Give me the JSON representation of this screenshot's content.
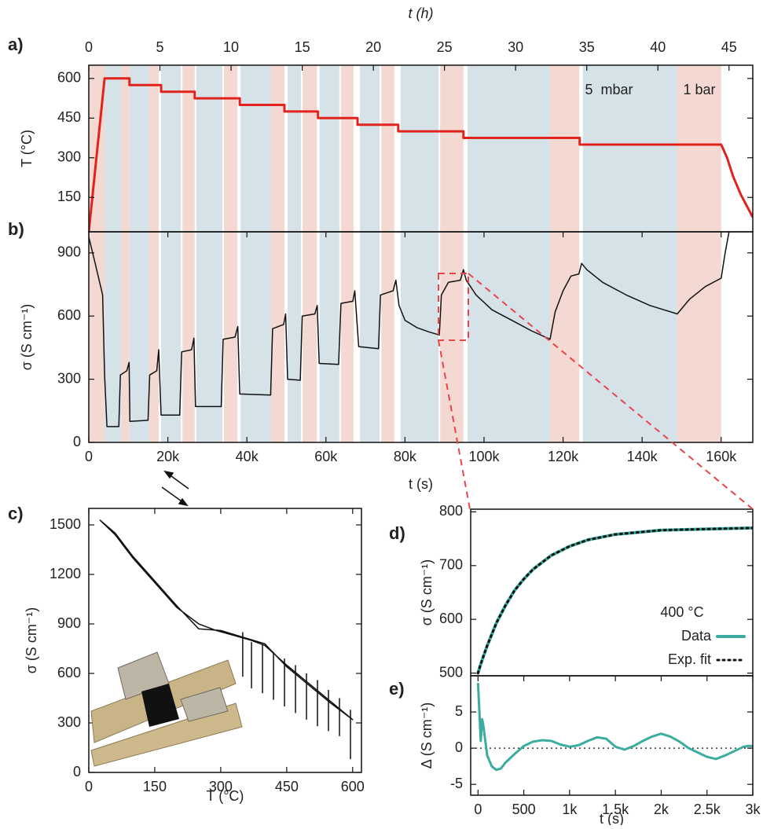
{
  "chart_data": [
    {
      "type": "line",
      "panel": "a)",
      "ylabel": "T (°C)",
      "x2label": "t (h)",
      "color": "#e0231c",
      "xlim": [
        0,
        168000
      ],
      "x2lim": [
        0,
        46.67
      ],
      "x2ticks": [
        0,
        5,
        10,
        15,
        20,
        25,
        30,
        35,
        40,
        45
      ],
      "ylim": [
        20,
        650
      ],
      "yticks": [
        150,
        300,
        450,
        600
      ],
      "annotations": [
        "5  mbar",
        "1 bar"
      ],
      "spans": [
        [
          0,
          4000
        ],
        [
          4000,
          8300
        ],
        [
          8300,
          10300
        ],
        [
          10300,
          15300
        ],
        [
          15300,
          17700
        ],
        [
          18300,
          23300
        ],
        [
          23700,
          26800
        ],
        [
          27200,
          33800
        ],
        [
          34200,
          37600
        ],
        [
          38400,
          46100
        ],
        [
          46100,
          49500
        ],
        [
          50300,
          53700
        ],
        [
          54100,
          57700
        ],
        [
          58400,
          63400
        ],
        [
          63800,
          67000
        ],
        [
          68600,
          73600
        ],
        [
          74000,
          77300
        ],
        [
          78900,
          88500
        ],
        [
          88900,
          94800
        ],
        [
          95800,
          116700
        ],
        [
          116700,
          124100
        ],
        [
          125000,
          148900
        ],
        [
          148900,
          160000
        ]
      ],
      "span_colors": [
        "#f3d9d2",
        "#d5e3e8",
        "#f3d9d2",
        "#d5e3e8",
        "#f3d9d2",
        "#d5e3e8",
        "#f3d9d2",
        "#d5e3e8",
        "#f3d9d2",
        "#d5e3e8",
        "#f3d9d2",
        "#d5e3e8",
        "#f3d9d2",
        "#d5e3e8",
        "#f3d9d2",
        "#d5e3e8",
        "#f3d9d2",
        "#d5e3e8",
        "#f3d9d2",
        "#d5e3e8",
        "#f3d9d2",
        "#d5e3e8",
        "#f3d9d2"
      ],
      "x": [
        0,
        4000,
        10300,
        10300,
        18300,
        18300,
        26800,
        26800,
        38200,
        38200,
        49500,
        49500,
        58000,
        58000,
        68000,
        68000,
        78300,
        78300,
        94800,
        94800,
        124200,
        124200,
        160000,
        161500,
        163000,
        165000,
        168000
      ],
      "values": [
        20,
        600,
        600,
        575,
        575,
        550,
        550,
        525,
        525,
        500,
        500,
        475,
        475,
        450,
        450,
        425,
        425,
        400,
        400,
        375,
        375,
        350,
        350,
        300,
        230,
        160,
        75
      ]
    },
    {
      "type": "line",
      "panel": "b)",
      "ylabel": "σ (S cm⁻¹)",
      "xlabel": "t (s)",
      "color": "#111111",
      "xlim": [
        0,
        168000
      ],
      "xticks": [
        0,
        {
          "value": 20000,
          "label": "20k"
        },
        {
          "value": 40000,
          "label": "40k"
        },
        {
          "value": 60000,
          "label": "60k"
        },
        {
          "value": 80000,
          "label": "80k"
        },
        {
          "value": 100000,
          "label": "100k"
        },
        {
          "value": 120000,
          "label": "120k"
        },
        {
          "value": 140000,
          "label": "140k"
        },
        {
          "value": 160000,
          "label": "160k"
        }
      ],
      "ylim": [
        0,
        1000
      ],
      "yticks": [
        0,
        300,
        600,
        900
      ],
      "spans": [
        [
          0,
          4000
        ],
        [
          4000,
          8300
        ],
        [
          8300,
          10300
        ],
        [
          10300,
          15300
        ],
        [
          15300,
          17700
        ],
        [
          18300,
          23300
        ],
        [
          23700,
          26800
        ],
        [
          27200,
          33800
        ],
        [
          34200,
          37600
        ],
        [
          38400,
          46100
        ],
        [
          46100,
          49500
        ],
        [
          50300,
          53700
        ],
        [
          54100,
          57700
        ],
        [
          58400,
          63400
        ],
        [
          63800,
          67000
        ],
        [
          68600,
          73600
        ],
        [
          74000,
          77300
        ],
        [
          78900,
          88500
        ],
        [
          88900,
          94800
        ],
        [
          95800,
          116700
        ],
        [
          116700,
          124100
        ],
        [
          125000,
          148900
        ],
        [
          148900,
          160000
        ]
      ],
      "span_colors": [
        "#f3d9d2",
        "#d5e3e8",
        "#f3d9d2",
        "#d5e3e8",
        "#f3d9d2",
        "#d5e3e8",
        "#f3d9d2",
        "#d5e3e8",
        "#f3d9d2",
        "#d5e3e8",
        "#f3d9d2",
        "#d5e3e8",
        "#f3d9d2",
        "#d5e3e8",
        "#f3d9d2",
        "#d5e3e8",
        "#f3d9d2",
        "#d5e3e8",
        "#f3d9d2",
        "#d5e3e8",
        "#f3d9d2",
        "#d5e3e8",
        "#f3d9d2"
      ],
      "x": [
        0,
        1500,
        3500,
        4000,
        4600,
        7600,
        8000,
        9600,
        10200,
        10400,
        15000,
        15400,
        17200,
        17700,
        18300,
        23000,
        23500,
        26000,
        26600,
        27000,
        33500,
        34000,
        37000,
        37700,
        38200,
        46000,
        46500,
        49300,
        49800,
        50300,
        53500,
        54000,
        57200,
        57800,
        58300,
        63200,
        63800,
        66800,
        67300,
        68300,
        73300,
        73800,
        77000,
        77700,
        78500,
        80000,
        83000,
        86000,
        88700,
        89200,
        91000,
        94000,
        94800,
        95500,
        98000,
        102000,
        108000,
        112000,
        116700,
        118000,
        120000,
        122000,
        124000,
        124700,
        126000,
        130000,
        136000,
        142000,
        148900,
        152000,
        156000,
        160000,
        161000,
        162000
      ],
      "values": [
        975,
        860,
        700,
        320,
        75,
        75,
        320,
        340,
        380,
        100,
        105,
        320,
        340,
        440,
        130,
        130,
        430,
        440,
        495,
        170,
        170,
        490,
        500,
        550,
        230,
        225,
        540,
        560,
        610,
        300,
        295,
        600,
        610,
        650,
        375,
        370,
        660,
        670,
        720,
        455,
        445,
        700,
        720,
        770,
        650,
        580,
        545,
        525,
        510,
        700,
        760,
        770,
        820,
        770,
        700,
        630,
        570,
        530,
        490,
        620,
        720,
        790,
        800,
        850,
        820,
        760,
        700,
        650,
        610,
        680,
        740,
        780,
        900,
        1000
      ]
    },
    {
      "type": "line",
      "panel": "c)",
      "ylabel": "σ (S cm⁻¹)",
      "xlabel": "T (°C)",
      "color": "#111111",
      "xlim": [
        0,
        620
      ],
      "xticks": [
        0,
        150,
        300,
        450,
        600
      ],
      "ylim": [
        0,
        1600
      ],
      "yticks": [
        0,
        300,
        600,
        900,
        1200,
        1500
      ],
      "x": [
        25,
        60,
        100,
        150,
        200,
        250,
        290,
        330,
        370,
        400,
        450,
        500,
        550,
        600,
        550,
        500,
        450,
        400,
        350,
        300,
        250,
        200,
        150,
        100,
        60,
        25
      ],
      "values": [
        1530,
        1440,
        1300,
        1150,
        1000,
        900,
        860,
        830,
        800,
        770,
        650,
        540,
        430,
        320,
        420,
        530,
        640,
        780,
        820,
        860,
        870,
        1010,
        1160,
        1310,
        1450,
        1530
      ],
      "spikes": {
        "x": [
          350,
          370,
          395,
          420,
          445,
          470,
          495,
          520,
          545,
          570,
          595
        ],
        "top": [
          850,
          790,
          780,
          730,
          690,
          650,
          600,
          560,
          500,
          450,
          380
        ],
        "bottom": [
          580,
          510,
          480,
          440,
          400,
          360,
          320,
          280,
          250,
          220,
          80
        ]
      }
    },
    {
      "type": "line",
      "panel": "d)",
      "ylabel": "σ (S cm⁻¹)",
      "legend_title": "400 °C",
      "xlim": [
        -80,
        3000
      ],
      "ylim": [
        495,
        805
      ],
      "yticks": [
        500,
        600,
        700,
        800
      ],
      "x": [
        0,
        25,
        50,
        100,
        200,
        300,
        400,
        500,
        600,
        800,
        1000,
        1200,
        1500,
        2000,
        2500,
        3000
      ],
      "series": [
        {
          "name": "Data",
          "color": "#3aada0",
          "style": "solid",
          "values": [
            500,
            514,
            527,
            551,
            593,
            626,
            654,
            675,
            693,
            719,
            736,
            748,
            758,
            766,
            768,
            770
          ]
        },
        {
          "name": "Exp. fit",
          "color": "#111111",
          "style": "dotted",
          "values": [
            500,
            514,
            527,
            551,
            593,
            626,
            654,
            675,
            693,
            719,
            736,
            748,
            758,
            766,
            768,
            770
          ]
        }
      ]
    },
    {
      "type": "line",
      "panel": "e)",
      "ylabel": "Δ (S cm⁻¹)",
      "xlabel": "t (s)",
      "color": "#3aada0",
      "xlim": [
        -80,
        3000
      ],
      "xticks": [
        0,
        500,
        {
          "value": 1000,
          "label": "1k"
        },
        {
          "value": 1500,
          "label": "1.5k"
        },
        {
          "value": 2000,
          "label": "2k"
        },
        {
          "value": 2500,
          "label": "2.5k"
        },
        {
          "value": 3000,
          "label": "3k"
        }
      ],
      "ylim": [
        -6.5,
        10
      ],
      "yticks": [
        -5,
        0,
        5
      ],
      "x": [
        0,
        15,
        30,
        45,
        60,
        80,
        100,
        150,
        200,
        250,
        300,
        400,
        500,
        600,
        700,
        800,
        900,
        1000,
        1100,
        1200,
        1300,
        1400,
        1500,
        1600,
        1700,
        1800,
        1900,
        2000,
        2100,
        2200,
        2300,
        2400,
        2500,
        2600,
        2700,
        2800,
        2900,
        2950,
        3000
      ],
      "values": [
        9,
        5,
        1,
        4,
        3,
        1,
        -1,
        -2.5,
        -3,
        -2.8,
        -2,
        -0.8,
        0.3,
        0.9,
        1.1,
        1,
        0.5,
        0.2,
        0.4,
        1,
        1.5,
        1.3,
        0.2,
        -0.2,
        0.3,
        1,
        1.6,
        2,
        1.6,
        0.9,
        0,
        -0.6,
        -1.2,
        -1.5,
        -1,
        -0.4,
        0.2,
        0.3,
        0.3
      ]
    }
  ]
}
